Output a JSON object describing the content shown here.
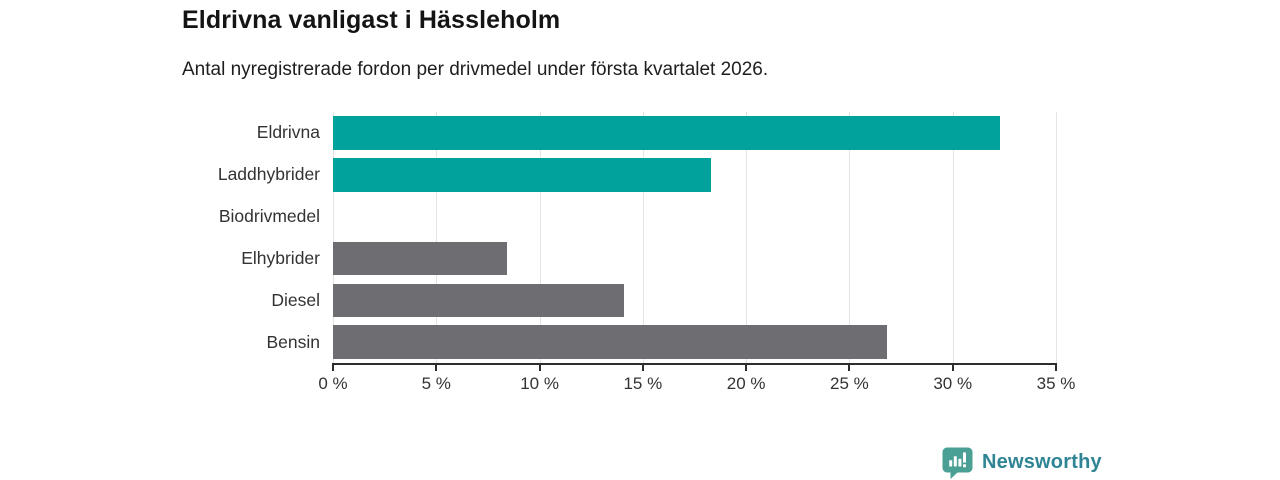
{
  "header": {
    "title": "Eldrivna vanligast i Hässleholm",
    "subtitle": "Antal nyregistrerade fordon per drivmedel under första kvartalet 2026."
  },
  "chart_data": {
    "type": "bar",
    "orientation": "horizontal",
    "title": "Eldrivna vanligast i Hässleholm",
    "subtitle": "Antal nyregistrerade fordon per drivmedel under första kvartalet 2026.",
    "categories": [
      "Eldrivna",
      "Laddhybrider",
      "Biodrivmedel",
      "Elhybrider",
      "Diesel",
      "Bensin"
    ],
    "values": [
      32.3,
      18.3,
      0,
      8.4,
      14.1,
      26.8
    ],
    "unit": "%",
    "bar_colors": [
      "#00a29b",
      "#00a29b",
      "#6d6d72",
      "#6d6d72",
      "#6d6d72",
      "#6d6d72"
    ],
    "xlabel": "",
    "ylabel": "",
    "xlim": [
      0,
      35
    ],
    "x_tick_step": 5,
    "x_tick_labels": [
      "0 %",
      "5 %",
      "10 %",
      "15 %",
      "20 %",
      "25 %",
      "30 %",
      "35 %"
    ],
    "grid": true,
    "gridline_color": "#e3e3e3",
    "axis_color": "#2d2d2d",
    "label_color": "#333333",
    "legend": "none"
  },
  "colors": {
    "accent_teal": "#00a29b",
    "neutral_gray": "#6d6d72",
    "background": "#ffffff"
  },
  "footer": {
    "brand": "Newsworthy",
    "brand_text_color": "#2f8594",
    "brand_icon_color": "#4aa094",
    "brand_icon": "bar-chart-speech-bubble"
  }
}
